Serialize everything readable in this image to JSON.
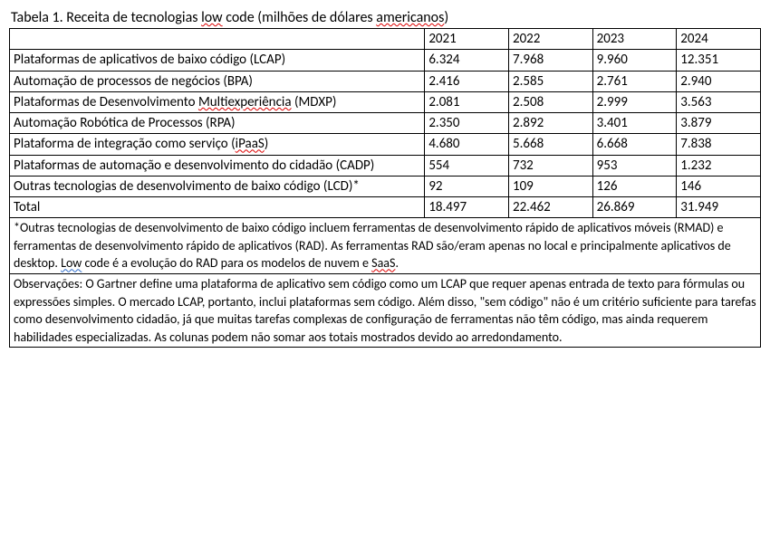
{
  "title_prefix": "Tabela 1. Receita de tecnologias ",
  "title_wavy": "low",
  "title_mid": " code (milhões de dólares ",
  "title_wavy2": "americanos",
  "title_suffix": ")",
  "years": [
    "2021",
    "2022",
    "2023",
    "2024"
  ],
  "rows": [
    {
      "label": "Plataformas de aplicativos de baixo código (LCAP)",
      "v": [
        "6.324",
        "7.968",
        "9.960",
        "12.351"
      ]
    },
    {
      "label": "Automação de processos de negócios (BPA)",
      "v": [
        "2.416",
        "2.585",
        "2.761",
        "2.940"
      ]
    },
    {
      "label_a": "Plataformas de Desenvolvimento ",
      "label_wavy": "Multiexperiência",
      "label_b": " (MDXP)",
      "v": [
        "2.081",
        "2.508",
        "2.999",
        "3.563"
      ]
    },
    {
      "label": "Automação Robótica de Processos (RPA)",
      "v": [
        "2.350",
        "2.892",
        "3.401",
        "3.879"
      ]
    },
    {
      "label_a": "Plataforma de integração como serviço (",
      "label_wavy": "iPaaS",
      "label_b": ")",
      "v": [
        "4.680",
        "5.668",
        "6.668",
        "7.838"
      ]
    },
    {
      "label": "Plataformas de automação e desenvolvimento do cidadão (CADP)",
      "v": [
        "554",
        "732",
        "953",
        "1.232"
      ]
    },
    {
      "label": "Outras tecnologias de desenvolvimento de baixo código (LCD)*",
      "v": [
        "92",
        "109",
        "126",
        "146"
      ]
    }
  ],
  "total_label": "Total",
  "total_v": [
    "18.497",
    "22.462",
    "26.869",
    "31.949"
  ],
  "note1_a": "*Outras tecnologias de desenvolvimento de baixo código incluem ferramentas de desenvolvimento rápido de aplicativos móveis (RMAD) e ferramentas de desenvolvimento rápido de aplicativos (RAD). As ferramentas RAD são/eram apenas no local e principalmente aplicativos de desktop. ",
  "note1_wavy": "Low",
  "note1_b": " code é a evolução do RAD para os modelos de nuvem e ",
  "note1_wavy2": "SaaS",
  "note1_c": ".",
  "note2": "Observações: O Gartner define uma plataforma de aplicativo sem código como um LCAP que requer apenas entrada de texto para fórmulas ou expressões simples. O mercado LCAP, portanto, inclui plataformas sem código. Além disso, \"sem código\" não é um critério suficiente para tarefas como desenvolvimento cidadão, já que muitas tarefas complexas de configuração de ferramentas não têm código, mas ainda requerem habilidades especializadas. As colunas podem não somar aos totais mostrados devido ao arredondamento."
}
